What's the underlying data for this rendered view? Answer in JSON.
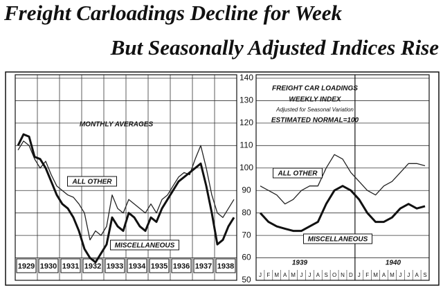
{
  "headline": [
    "Freight Carloadings Decline for Week",
    "But Seasonally Adjusted Indices Rise"
  ],
  "y_axis": {
    "ylim": [
      50,
      140
    ],
    "yticks": [
      50,
      60,
      70,
      80,
      90,
      100,
      110,
      120,
      130,
      140
    ]
  },
  "chart_data": [
    {
      "type": "line",
      "title": "MONTHLY AVERAGES",
      "x": [
        1929.125,
        1929.375,
        1929.625,
        1929.875,
        1930.125,
        1930.375,
        1930.625,
        1930.875,
        1931.125,
        1931.375,
        1931.625,
        1931.875,
        1932.125,
        1932.375,
        1932.625,
        1932.875,
        1933.125,
        1933.375,
        1933.625,
        1933.875,
        1934.125,
        1934.375,
        1934.625,
        1934.875,
        1935.125,
        1935.375,
        1935.625,
        1935.875,
        1936.125,
        1936.375,
        1936.625,
        1936.875,
        1937.125,
        1937.375,
        1937.625,
        1937.875,
        1938.125,
        1938.375,
        1938.625,
        1938.875
      ],
      "xlim": [
        1929,
        1939
      ],
      "xticks": [
        {
          "value": 1929.5,
          "label": "1929"
        },
        {
          "value": 1930.5,
          "label": "1930"
        },
        {
          "value": 1931.5,
          "label": "1931"
        },
        {
          "value": 1932.5,
          "label": "1932"
        },
        {
          "value": 1933.5,
          "label": "1933"
        },
        {
          "value": 1934.5,
          "label": "1934"
        },
        {
          "value": 1935.5,
          "label": "1935"
        },
        {
          "value": 1936.5,
          "label": "1936"
        },
        {
          "value": 1937.5,
          "label": "1937"
        },
        {
          "value": 1938.5,
          "label": "1938"
        }
      ],
      "series": [
        {
          "name": "ALL OTHER",
          "color": "#222222",
          "values": [
            108,
            112,
            110,
            104,
            100,
            103,
            97,
            92,
            90,
            88,
            87,
            84,
            80,
            68,
            72,
            70,
            74,
            88,
            82,
            80,
            86,
            84,
            82,
            80,
            84,
            80,
            86,
            88,
            92,
            96,
            98,
            97,
            104,
            110,
            100,
            88,
            80,
            78,
            82,
            86
          ]
        },
        {
          "name": "MISCELLANEOUS",
          "color": "#111111",
          "values": [
            110,
            115,
            114,
            105,
            104,
            100,
            94,
            88,
            84,
            82,
            78,
            72,
            64,
            60,
            58,
            62,
            66,
            78,
            74,
            72,
            80,
            78,
            74,
            72,
            78,
            76,
            82,
            86,
            90,
            94,
            96,
            98,
            100,
            102,
            92,
            80,
            66,
            68,
            74,
            78
          ]
        }
      ]
    },
    {
      "type": "line",
      "title": "FREIGHT CAR LOADINGS",
      "subtitle": "WEEKLY INDEX",
      "annotations": [
        "Adjusted for Seasonal Variation",
        "ESTIMATED NORMAL=100",
        "1939",
        "1940"
      ],
      "categories": [
        "J",
        "F",
        "M",
        "A",
        "M",
        "J",
        "J",
        "A",
        "S",
        "O",
        "N",
        "D",
        "J",
        "F",
        "M",
        "A",
        "M",
        "J",
        "J",
        "A",
        "S"
      ],
      "series": [
        {
          "name": "ALL OTHER",
          "color": "#222222",
          "values": [
            92,
            90,
            88,
            84,
            86,
            90,
            92,
            92,
            100,
            106,
            104,
            98,
            94,
            90,
            88,
            92,
            94,
            98,
            102,
            102,
            101
          ]
        },
        {
          "name": "MISCELLANEOUS",
          "color": "#111111",
          "values": [
            80,
            76,
            74,
            73,
            72,
            72,
            74,
            76,
            84,
            90,
            92,
            90,
            86,
            80,
            76,
            76,
            78,
            82,
            84,
            82,
            83
          ]
        }
      ]
    }
  ]
}
